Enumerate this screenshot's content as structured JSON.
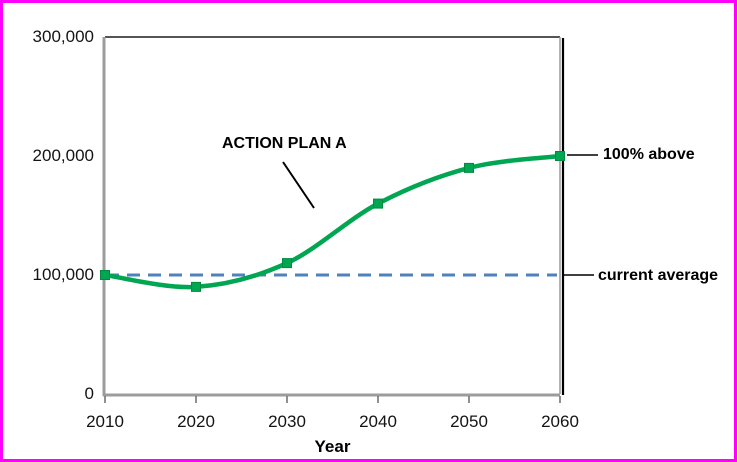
{
  "frame": {
    "border_color": "#FF00FF",
    "background_color": "#FFFFFF"
  },
  "chart_data": {
    "type": "line",
    "title": "",
    "xlabel": "Year",
    "ylabel": "",
    "x": [
      2010,
      2020,
      2030,
      2040,
      2050,
      2060
    ],
    "xlim": [
      2010,
      2060
    ],
    "ylim": [
      0,
      300000
    ],
    "xticks": [
      2010,
      2020,
      2030,
      2040,
      2050,
      2060
    ],
    "xtick_labels": [
      "2010",
      "2020",
      "2030",
      "2040",
      "2050",
      "2060"
    ],
    "yticks": [
      0,
      100000,
      200000,
      300000
    ],
    "ytick_labels": [
      "0",
      "100,000",
      "200,000",
      "300,000"
    ],
    "grid": false,
    "legend": false,
    "series": [
      {
        "name": "ACTION PLAN A",
        "values": [
          100000,
          90000,
          110000,
          160000,
          190000,
          200000
        ],
        "color": "#00A651",
        "marker": "square",
        "marker_color": "#00A651",
        "smooth": true
      }
    ],
    "reference_line": {
      "value": 100000,
      "style": "dashed",
      "color": "#4F81BD",
      "label": "current average"
    },
    "annotations": [
      {
        "text": "ACTION PLAN A"
      },
      {
        "text": "100% above"
      },
      {
        "text": "current average"
      }
    ]
  }
}
